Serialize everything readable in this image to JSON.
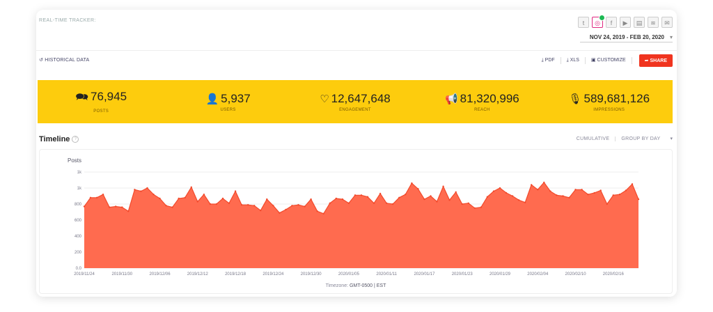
{
  "header": {
    "tracker_label": "REAL-TIME TRACKER:",
    "date_range": "NOV 24, 2019 - FEB 20, 2020",
    "social_icons": [
      {
        "name": "twitter-icon",
        "glyph": "t",
        "active": false
      },
      {
        "name": "instagram-icon",
        "glyph": "◎",
        "active": true
      },
      {
        "name": "facebook-icon",
        "glyph": "f",
        "active": false
      },
      {
        "name": "youtube-icon",
        "glyph": "▶",
        "active": false
      },
      {
        "name": "news-icon",
        "glyph": "▤",
        "active": false
      },
      {
        "name": "rss-icon",
        "glyph": "≋",
        "active": false
      },
      {
        "name": "chat-icon",
        "glyph": "✉",
        "active": false
      }
    ]
  },
  "toolbar": {
    "historical_label": "HISTORICAL DATA",
    "pdf_label": "PDF",
    "xls_label": "XLS",
    "customize_label": "CUSTOMIZE",
    "share_label": "SHARE",
    "share_color": "#f0341f"
  },
  "stats": [
    {
      "icon": "chat-bubbles-icon",
      "glyph": "🗪",
      "value": "76,945",
      "label": "POSTS"
    },
    {
      "icon": "user-icon",
      "glyph": "👤",
      "value": "5,937",
      "label": "USERS"
    },
    {
      "icon": "heart-icon",
      "glyph": "♡",
      "value": "12,647,648",
      "label": "ENGAGEMENT"
    },
    {
      "icon": "megaphone-icon",
      "glyph": "📢",
      "value": "81,320,996",
      "label": "REACH"
    },
    {
      "icon": "microphone-icon",
      "glyph": "🎙",
      "value": "589,681,126",
      "label": "IMPRESSIONS"
    }
  ],
  "timeline": {
    "title": "Timeline",
    "cumulative_label": "CUMULATIVE",
    "group_label": "GROUP BY DAY",
    "timezone_label": "Timezone:",
    "timezone_value": "GMT-0500 | EST"
  },
  "chart_data": {
    "type": "area",
    "title": "",
    "ylabel": "Posts",
    "xlabel": "",
    "ylim": [
      0,
      1200
    ],
    "y_ticks": [
      0,
      200,
      400,
      600,
      800,
      1000,
      1200
    ],
    "y_tick_labels": [
      "0.0",
      "200",
      "400",
      "600",
      "800",
      "1k",
      "1k"
    ],
    "x_tick_labels": [
      "2019/11/24",
      "2019/11/30",
      "2019/12/06",
      "2019/12/12",
      "2019/12/18",
      "2019/12/24",
      "2019/12/30",
      "2020/01/05",
      "2020/01/11",
      "2020/01/17",
      "2020/01/23",
      "2020/01/29",
      "2020/02/04",
      "2020/02/10",
      "2020/02/16"
    ],
    "fill_color": "#ff6b4f",
    "line_color": "#f24a2c",
    "grid": true,
    "series": [
      {
        "values": [
          770,
          880,
          880,
          920,
          760,
          770,
          760,
          710,
          980,
          960,
          1000,
          920,
          870,
          780,
          760,
          870,
          880,
          1010,
          830,
          920,
          800,
          800,
          870,
          810,
          960,
          790,
          790,
          780,
          720,
          860,
          780,
          690,
          730,
          780,
          790,
          770,
          860,
          710,
          680,
          810,
          870,
          860,
          810,
          910,
          910,
          890,
          810,
          930,
          810,
          800,
          880,
          920,
          1060,
          990,
          860,
          900,
          830,
          1020,
          850,
          950,
          800,
          810,
          750,
          760,
          890,
          960,
          1000,
          940,
          900,
          850,
          820,
          1040,
          980,
          1070,
          960,
          910,
          900,
          880,
          980,
          980,
          920,
          940,
          970,
          800,
          910,
          920,
          970,
          1050,
          860
        ]
      }
    ]
  }
}
